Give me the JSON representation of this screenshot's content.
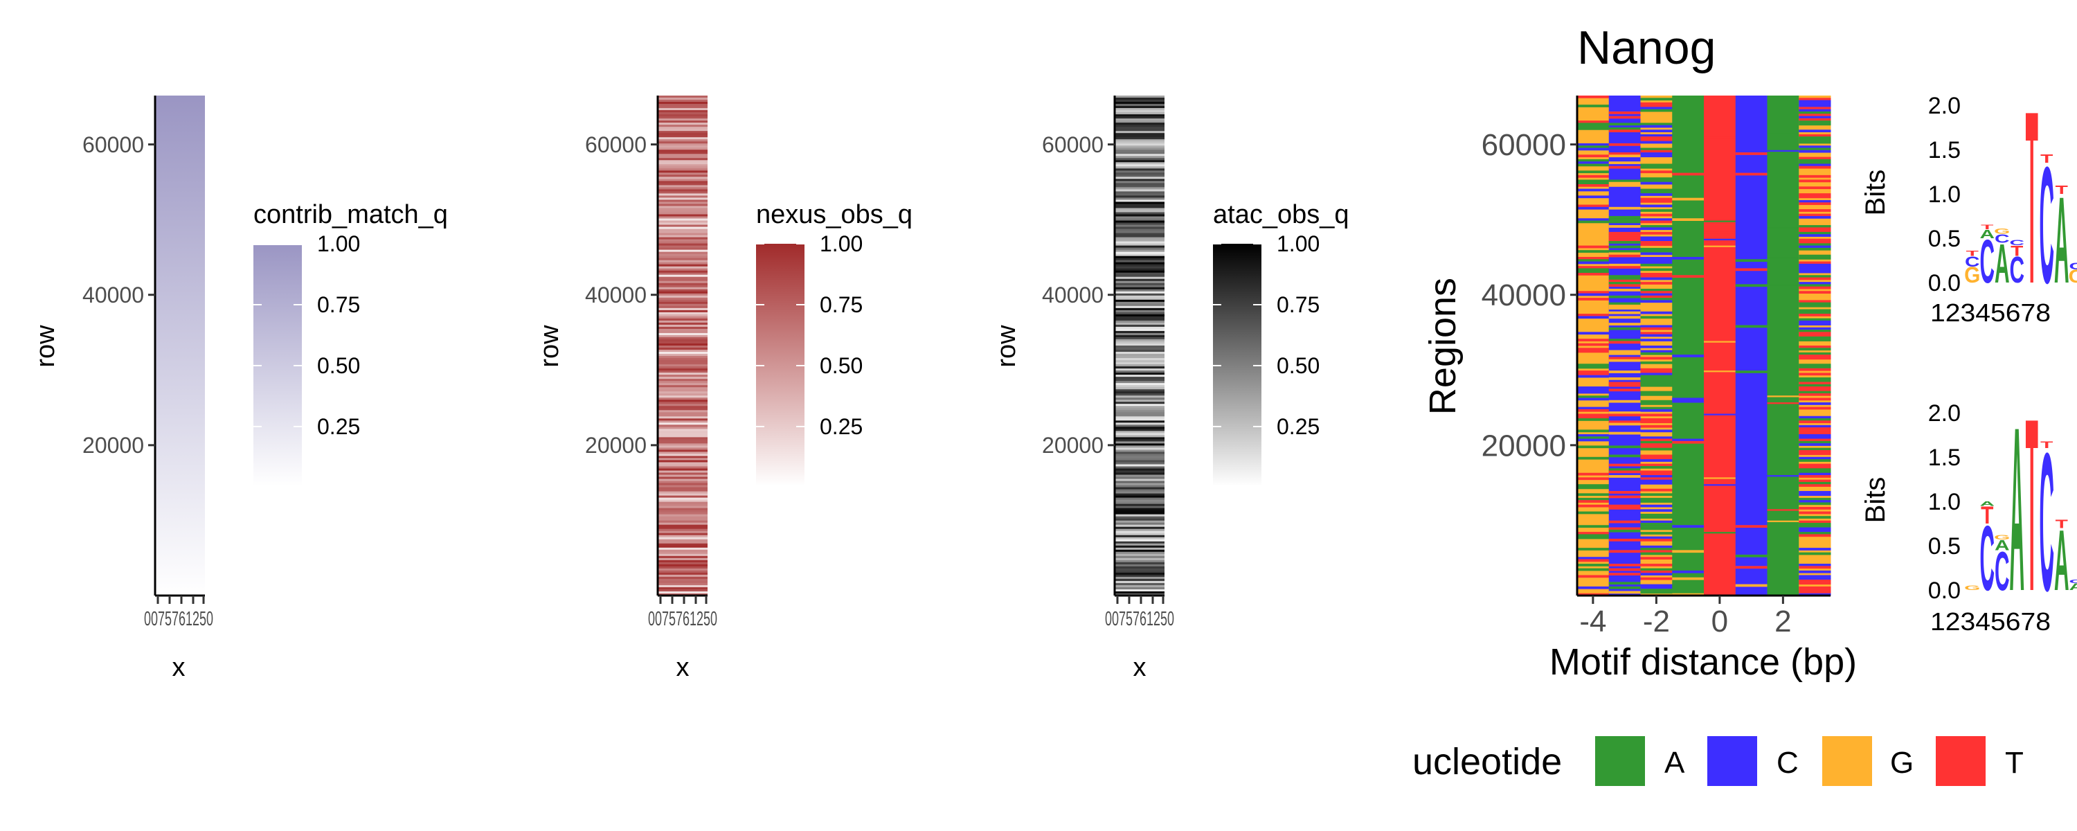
{
  "colors": {
    "contrib_high": "#9a95c3",
    "nexus_high": "#a12b2b",
    "atac_high": "#000000",
    "A": "#339933",
    "C": "#3d2eff",
    "G": "#ffb22f",
    "T": "#ff3333"
  },
  "chart_data": [
    {
      "type": "heatmap",
      "panel": "contrib",
      "xlabel": "x",
      "ylabel": "row",
      "yticks": [
        20000,
        40000,
        60000
      ],
      "xtick_text": "0075761250",
      "legend_title": "contrib_match_q",
      "legend_ticks": [
        "1.00",
        "0.75",
        "0.50",
        "0.25"
      ],
      "ylim": [
        0,
        66500
      ]
    },
    {
      "type": "heatmap",
      "panel": "nexus",
      "xlabel": "x",
      "ylabel": "row",
      "yticks": [
        20000,
        40000,
        60000
      ],
      "xtick_text": "0075761250",
      "legend_title": "nexus_obs_q",
      "legend_ticks": [
        "1.00",
        "0.75",
        "0.50",
        "0.25"
      ],
      "ylim": [
        0,
        66500
      ]
    },
    {
      "type": "heatmap",
      "panel": "atac",
      "xlabel": "x",
      "ylabel": "row",
      "yticks": [
        20000,
        40000,
        60000
      ],
      "xtick_text": "0075761250",
      "legend_title": "atac_obs_q",
      "legend_ticks": [
        "1.00",
        "0.75",
        "0.50",
        "0.25"
      ],
      "ylim": [
        0,
        66500
      ]
    },
    {
      "type": "heatmap",
      "panel": "sequence",
      "title": "Nanog",
      "xlabel": "Motif distance (bp)",
      "ylabel": "Regions",
      "xticks": [
        -4,
        -2,
        0,
        2
      ],
      "xlim": [
        -4.5,
        3.5
      ],
      "yticks": [
        20000,
        40000,
        60000
      ],
      "ylim": [
        0,
        66500
      ],
      "columns": [
        {
          "x": -4,
          "dominant": "G"
        },
        {
          "x": -3,
          "dominant": "C"
        },
        {
          "x": -2,
          "dominant": "mixed"
        },
        {
          "x": -1,
          "dominant": "A"
        },
        {
          "x": 0,
          "dominant": "T"
        },
        {
          "x": 1,
          "dominant": "C"
        },
        {
          "x": 2,
          "dominant": "A"
        },
        {
          "x": 3,
          "dominant": "mixed"
        }
      ],
      "legend_title": "ucleotide",
      "legend": [
        "A",
        "C",
        "G",
        "T"
      ]
    },
    {
      "type": "other",
      "panel": "logo-top",
      "ylabel": "Bits",
      "ylim": [
        0,
        2
      ],
      "yticks": [
        "0.0",
        "0.5",
        "1.0",
        "1.5",
        "2.0"
      ],
      "xtick_text": "12345678",
      "letters": [
        {
          "pos": 1,
          "stack": [
            {
              "l": "G",
              "h": 0.18
            },
            {
              "l": "C",
              "h": 0.12
            },
            {
              "l": "T",
              "h": 0.06
            }
          ]
        },
        {
          "pos": 2,
          "stack": [
            {
              "l": "C",
              "h": 0.5
            },
            {
              "l": "A",
              "h": 0.1
            },
            {
              "l": "T",
              "h": 0.05
            }
          ]
        },
        {
          "pos": 3,
          "stack": [
            {
              "l": "A",
              "h": 0.45
            },
            {
              "l": "C",
              "h": 0.1
            },
            {
              "l": "G",
              "h": 0.06
            }
          ]
        },
        {
          "pos": 4,
          "stack": [
            {
              "l": "C",
              "h": 0.3
            },
            {
              "l": "T",
              "h": 0.12
            },
            {
              "l": "C",
              "h": 0.06
            }
          ]
        },
        {
          "pos": 5,
          "stack": [
            {
              "l": "T",
              "h": 2.0
            }
          ]
        },
        {
          "pos": 6,
          "stack": [
            {
              "l": "C",
              "h": 1.35
            },
            {
              "l": "T",
              "h": 0.1
            }
          ]
        },
        {
          "pos": 7,
          "stack": [
            {
              "l": "A",
              "h": 1.0
            },
            {
              "l": "T",
              "h": 0.1
            }
          ]
        },
        {
          "pos": 8,
          "stack": [
            {
              "l": "G",
              "h": 0.15
            },
            {
              "l": "C",
              "h": 0.08
            }
          ]
        }
      ]
    },
    {
      "type": "other",
      "panel": "logo-bottom",
      "ylabel": "Bits",
      "ylim": [
        0,
        2
      ],
      "yticks": [
        "0.0",
        "0.5",
        "1.0",
        "1.5",
        "2.0"
      ],
      "xtick_text": "12345678",
      "letters": [
        {
          "pos": 1,
          "stack": [
            {
              "l": "G",
              "h": 0.05
            }
          ]
        },
        {
          "pos": 2,
          "stack": [
            {
              "l": "C",
              "h": 0.75
            },
            {
              "l": "T",
              "h": 0.2
            },
            {
              "l": "A",
              "h": 0.05
            }
          ]
        },
        {
          "pos": 3,
          "stack": [
            {
              "l": "C",
              "h": 0.45
            },
            {
              "l": "A",
              "h": 0.12
            },
            {
              "l": "G",
              "h": 0.05
            }
          ]
        },
        {
          "pos": 4,
          "stack": [
            {
              "l": "A",
              "h": 1.9
            }
          ]
        },
        {
          "pos": 5,
          "stack": [
            {
              "l": "T",
              "h": 2.0
            }
          ]
        },
        {
          "pos": 6,
          "stack": [
            {
              "l": "C",
              "h": 1.6
            },
            {
              "l": "T",
              "h": 0.08
            }
          ]
        },
        {
          "pos": 7,
          "stack": [
            {
              "l": "A",
              "h": 0.7
            },
            {
              "l": "T",
              "h": 0.1
            }
          ]
        },
        {
          "pos": 8,
          "stack": [
            {
              "l": "A",
              "h": 0.08
            },
            {
              "l": "C",
              "h": 0.04
            }
          ]
        }
      ]
    }
  ]
}
